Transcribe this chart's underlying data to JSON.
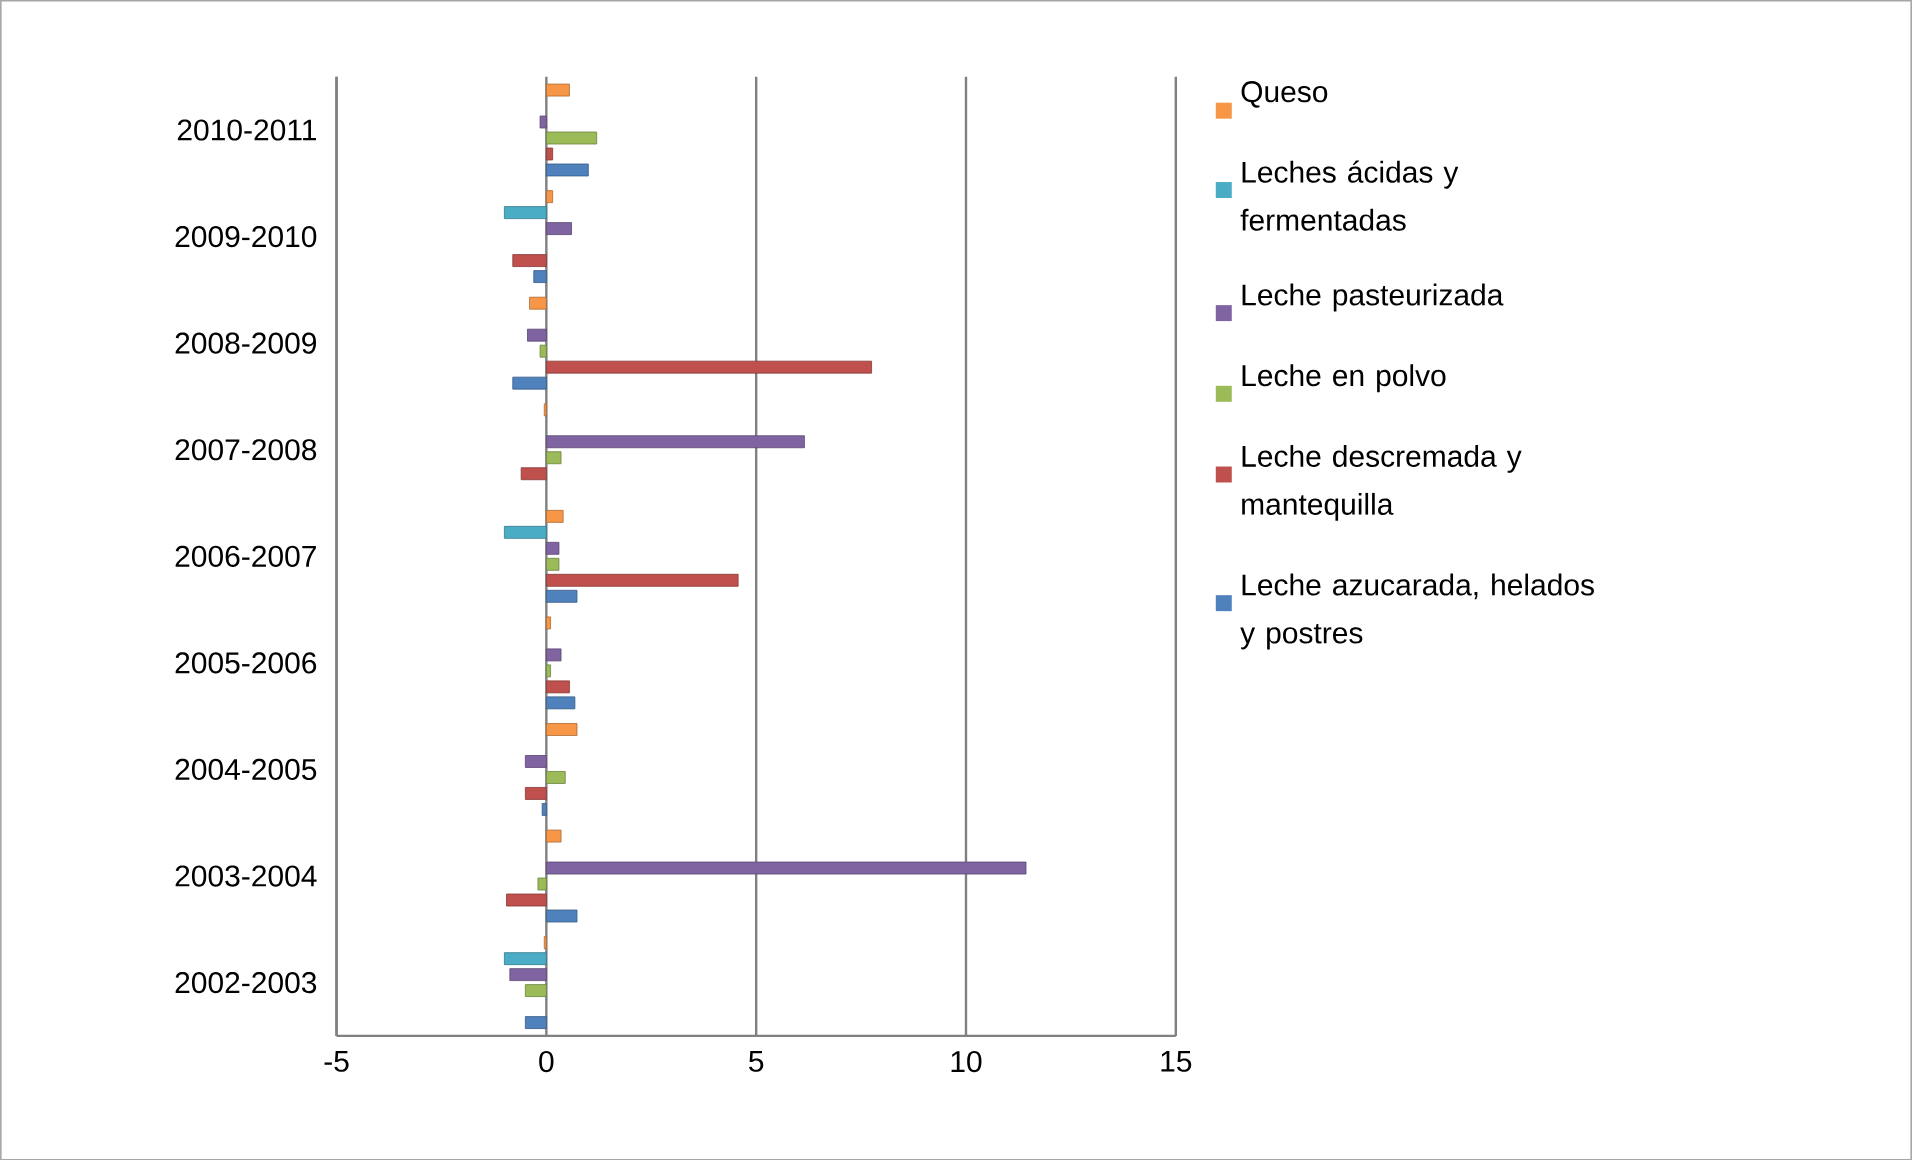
{
  "chart_data": {
    "type": "bar",
    "orientation": "horizontal",
    "categories": [
      "2010-2011",
      "2009-2010",
      "2008-2009",
      "2007-2008",
      "2006-2007",
      "2005-2006",
      "2004-2005",
      "2003-2004",
      "2002-2003"
    ],
    "series": [
      {
        "name": "Leche azucarada, helados y postres",
        "color": "#4f81bd",
        "values": [
          1.0,
          -0.3,
          -0.8,
          null,
          0.73,
          0.68,
          -0.1,
          0.73,
          -0.5
        ]
      },
      {
        "name": "Leche descremada y mantequilla",
        "color": "#c0504d",
        "values": [
          0.15,
          -0.8,
          7.75,
          -0.6,
          4.57,
          0.55,
          -0.5,
          -0.95,
          null
        ]
      },
      {
        "name": "Leche en polvo",
        "color": "#9bbb59",
        "values": [
          1.2,
          null,
          -0.15,
          0.35,
          0.3,
          0.1,
          0.45,
          -0.2,
          -0.5
        ]
      },
      {
        "name": "Leche pasteurizada",
        "color": "#8064a2",
        "values": [
          -0.15,
          0.6,
          -0.45,
          6.15,
          0.3,
          0.35,
          -0.5,
          11.43,
          -0.87
        ]
      },
      {
        "name": "Leches ácidas y fermentadas",
        "color": "#4bacc6",
        "values": [
          null,
          -1.0,
          null,
          null,
          -1.0,
          null,
          null,
          null,
          -1.0
        ]
      },
      {
        "name": "Queso",
        "color": "#f79646",
        "values": [
          0.55,
          0.15,
          -0.4,
          -0.05,
          0.4,
          0.1,
          0.73,
          0.35,
          -0.05
        ]
      }
    ],
    "xlim": [
      -5,
      15
    ],
    "xticks": [
      -5,
      0,
      5,
      10,
      15
    ],
    "grid": "x",
    "legend": "right"
  }
}
